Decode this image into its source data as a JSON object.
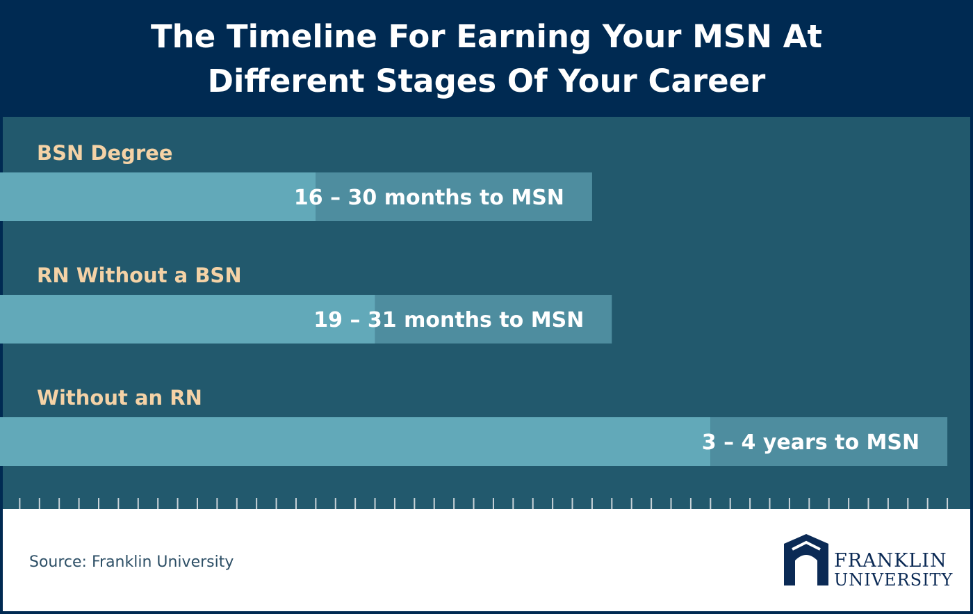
{
  "chart_data": {
    "type": "range-bar",
    "title": [
      "The Timeline For Earning Your MSN At",
      "Different Stages Of Your Career"
    ],
    "categories": [
      "BSN Degree",
      "RN Without a BSN",
      "Without an RN"
    ],
    "low": [
      16,
      19,
      36
    ],
    "high": [
      30,
      31,
      48
    ],
    "value_labels": [
      "16 – 30 months to MSN",
      "19 – 31 months to MSN",
      "3 – 4 years to MSN"
    ],
    "low_color": "#62a9b9",
    "high_color": "#4e8d9f",
    "xlim": [
      0,
      49.3
    ],
    "xticks": [
      1,
      2,
      3,
      4,
      5,
      6,
      7,
      8,
      9,
      10,
      11,
      12,
      13,
      14,
      15,
      16,
      17,
      18,
      19,
      20,
      21,
      22,
      23,
      24,
      25,
      26,
      27,
      28,
      29,
      30,
      31,
      32,
      33,
      34,
      35,
      36,
      37,
      38,
      39,
      40,
      41,
      42,
      43,
      44,
      45,
      46,
      47,
      48
    ],
    "source": "Source: Franklin University",
    "logo": [
      "FRANKLIN",
      "UNIVERSITY"
    ]
  }
}
